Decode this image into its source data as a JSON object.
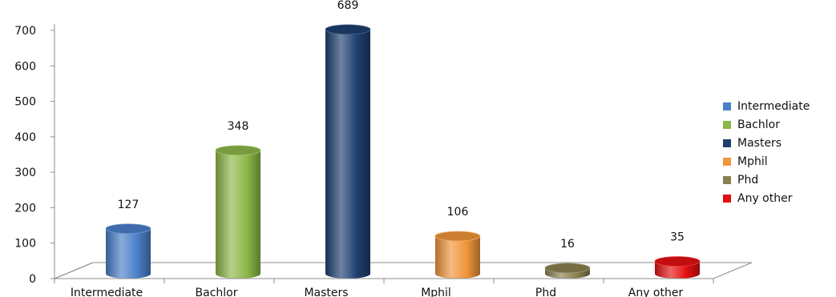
{
  "chart_data": {
    "type": "bar",
    "title": "",
    "xlabel": "",
    "ylabel": "",
    "categories": [
      "Intermediate",
      "Bachlor",
      "Masters",
      "Mphil",
      "Phd",
      "Any other"
    ],
    "values": [
      127,
      348,
      689,
      106,
      16,
      35
    ],
    "colors": [
      "#4a7fc8",
      "#8db848",
      "#1f3f70",
      "#f0953a",
      "#8a8050",
      "#e41010"
    ],
    "yticks": [
      "0",
      "100",
      "200",
      "300",
      "400",
      "500",
      "600",
      "700"
    ],
    "ylim": [
      0,
      700
    ],
    "grid": false,
    "legend_position": "right",
    "data_labels": true,
    "style": "3d-cylinder"
  }
}
